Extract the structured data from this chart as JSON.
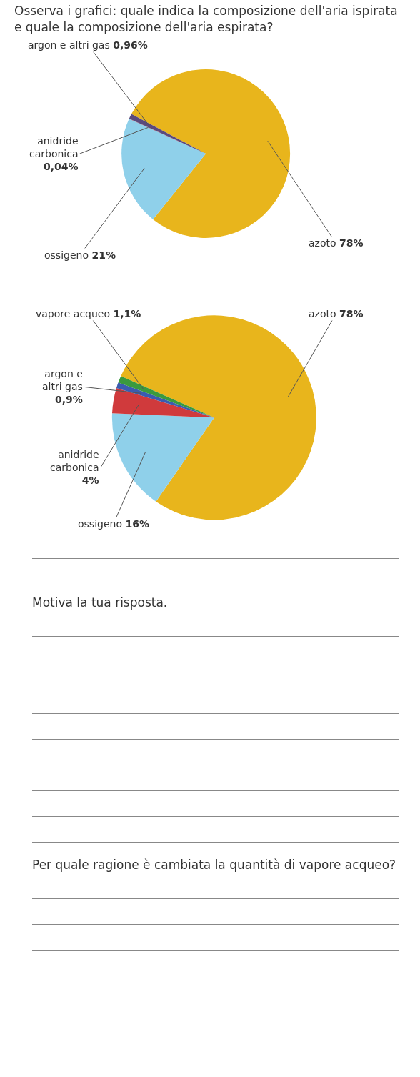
{
  "chart_data": [
    {
      "type": "pie",
      "title": "Osserva i grafici: quale indica la composizione dell'aria ispirata e quale la composizione dell'aria espirata?",
      "categories": [
        "azoto",
        "ossigeno",
        "anidride carbonica",
        "argon e altri gas"
      ],
      "values": [
        78,
        21,
        0.04,
        0.96
      ],
      "value_labels": [
        "78%",
        "21%",
        "0,04%",
        "0,96%"
      ],
      "colors": [
        "#e8b51c",
        "#8fd0ea",
        "#c8383a",
        "#5b4a7c"
      ]
    },
    {
      "type": "pie",
      "categories": [
        "azoto",
        "ossigeno",
        "anidride carbonica",
        "argon e altri gas",
        "vapore acqueo"
      ],
      "values": [
        78,
        16,
        4,
        0.9,
        1.1
      ],
      "value_labels": [
        "78%",
        "16%",
        "4%",
        "0,9%",
        "1,1%"
      ],
      "colors": [
        "#e8b51c",
        "#8fd0ea",
        "#d03a3c",
        "#3a5cb0",
        "#3a9a3e"
      ],
      "annotations": [
        "Motiva la tua risposta.",
        "Per quale ragione è cambiata la quantità di vapore acqueo?"
      ]
    }
  ]
}
